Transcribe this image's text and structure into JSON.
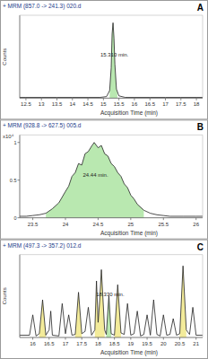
{
  "chart_data": [
    {
      "type": "line",
      "title": "+ MRM (857.0 -> 241.3) 020.d",
      "panel_label": "A",
      "x_label": "Acquisition Time (min)",
      "y_label": "Counts",
      "color": "#222222",
      "grid": false,
      "tick_labels": "x",
      "xlim": [
        12.3,
        18.2
      ],
      "xticks": [
        12.5,
        13,
        13.5,
        14,
        14.5,
        15,
        15.5,
        16,
        16.5,
        17,
        17.5,
        18
      ],
      "ylim": [
        0,
        1.1
      ],
      "x": [
        12.3,
        12.5,
        13,
        13.5,
        14,
        14.5,
        14.9,
        15.1,
        15.2,
        15.25,
        15.28,
        15.31,
        15.34,
        15.37,
        15.42,
        15.5,
        15.7,
        16,
        16.5,
        17,
        17.5,
        18,
        18.2
      ],
      "values": [
        0.01,
        0.01,
        0.01,
        0.01,
        0.01,
        0.01,
        0.01,
        0.02,
        0.1,
        0.4,
        0.85,
        1.0,
        0.8,
        0.45,
        0.12,
        0.03,
        0.01,
        0.01,
        0.01,
        0.01,
        0.01,
        0.01,
        0.01
      ],
      "peaks": [
        {
          "start": 15.2,
          "end": 15.45,
          "color": "#b9e8b0"
        }
      ],
      "annotations": [
        {
          "text": "15.310 min.",
          "x": 15.31
        }
      ]
    },
    {
      "type": "line",
      "title": "+ MRM (928.8 -> 627.5) 005.d",
      "panel_label": "B",
      "x_label": "Acquisition Time (min)",
      "y_multiplier": "x10⁴",
      "color": "#222222",
      "grid": false,
      "xlim": [
        23.3,
        26.1
      ],
      "xticks": [
        23.5,
        24,
        24.5,
        25,
        25.5,
        26
      ],
      "ylim": [
        0,
        1.1
      ],
      "yticks": [
        0,
        0.5,
        1
      ],
      "x": [
        23.3,
        23.4,
        23.5,
        23.6,
        23.7,
        23.8,
        23.9,
        24.0,
        24.05,
        24.1,
        24.15,
        24.2,
        24.25,
        24.3,
        24.35,
        24.4,
        24.44,
        24.5,
        24.55,
        24.6,
        24.65,
        24.7,
        24.75,
        24.8,
        24.85,
        24.9,
        24.95,
        25.0,
        25.05,
        25.1,
        25.2,
        25.3,
        25.4,
        25.5,
        25.6,
        25.8,
        26.0,
        26.1
      ],
      "values": [
        0.02,
        0.02,
        0.03,
        0.04,
        0.06,
        0.12,
        0.2,
        0.35,
        0.42,
        0.55,
        0.6,
        0.72,
        0.7,
        0.85,
        0.88,
        0.95,
        1.0,
        0.93,
        0.96,
        0.85,
        0.82,
        0.72,
        0.68,
        0.6,
        0.55,
        0.45,
        0.4,
        0.3,
        0.25,
        0.18,
        0.1,
        0.06,
        0.04,
        0.03,
        0.02,
        0.02,
        0.02,
        0.02
      ],
      "peaks": [
        {
          "start": 23.7,
          "end": 25.2,
          "color": "#b9e8b0"
        }
      ],
      "annotations": [
        {
          "text": "24.44 min.",
          "x": 24.44
        }
      ]
    },
    {
      "type": "line",
      "title": "+ MRM (497.3 -> 357.2) 012.d",
      "panel_label": "C",
      "x_label": "Acquisition Time (min)",
      "y_label": "Counts",
      "color": "#222222",
      "grid": false,
      "tick_labels": "x",
      "xlim": [
        15.6,
        21.2
      ],
      "xticks": [
        16,
        16.5,
        17,
        17.5,
        18,
        18.5,
        19,
        19.5,
        20,
        20.5,
        21
      ],
      "ylim": [
        0,
        1.1
      ],
      "x": [
        15.6,
        15.9,
        16.0,
        16.1,
        16.2,
        16.3,
        16.4,
        16.5,
        16.55,
        16.6,
        16.8,
        16.9,
        17.0,
        17.1,
        17.2,
        17.3,
        17.4,
        17.5,
        17.6,
        17.7,
        17.8,
        17.9,
        17.95,
        18.0,
        18.05,
        18.1,
        18.2,
        18.25,
        18.33,
        18.4,
        18.5,
        18.6,
        18.7,
        18.8,
        18.9,
        19.0,
        19.1,
        19.2,
        19.3,
        19.4,
        19.5,
        19.6,
        19.7,
        19.8,
        19.9,
        20.0,
        20.1,
        20.2,
        20.3,
        20.4,
        20.5,
        20.6,
        20.7,
        20.8,
        20.9,
        21.0,
        21.2
      ],
      "values": [
        0.03,
        0.03,
        0.3,
        0.02,
        0.05,
        0.5,
        0.03,
        0.1,
        0.35,
        0.03,
        0.02,
        0.45,
        0.05,
        0.3,
        0.03,
        0.04,
        0.6,
        0.05,
        0.08,
        0.4,
        0.03,
        0.1,
        0.75,
        0.2,
        0.5,
        0.9,
        0.1,
        0.04,
        0.55,
        0.05,
        0.03,
        0.7,
        0.06,
        0.04,
        0.45,
        0.03,
        0.05,
        0.35,
        0.02,
        0.04,
        0.3,
        0.03,
        0.5,
        0.04,
        0.02,
        0.3,
        0.03,
        0.04,
        0.25,
        0.03,
        0.05,
        0.95,
        0.1,
        0.04,
        0.4,
        0.03,
        0.03
      ],
      "peaks": [
        {
          "start": 16.2,
          "end": 16.4,
          "color": "#f3eb9a"
        },
        {
          "start": 17.3,
          "end": 17.5,
          "color": "#f3eb9a"
        },
        {
          "start": 17.9,
          "end": 18.2,
          "color": "#f3eb9a"
        },
        {
          "start": 18.25,
          "end": 18.4,
          "color": "#b9e8b0"
        },
        {
          "start": 18.5,
          "end": 18.7,
          "color": "#f3eb9a"
        },
        {
          "start": 20.5,
          "end": 20.7,
          "color": "#f3eb9a"
        }
      ],
      "annotations": [
        {
          "text": "18.330 min.",
          "x": 18.33
        }
      ]
    }
  ]
}
